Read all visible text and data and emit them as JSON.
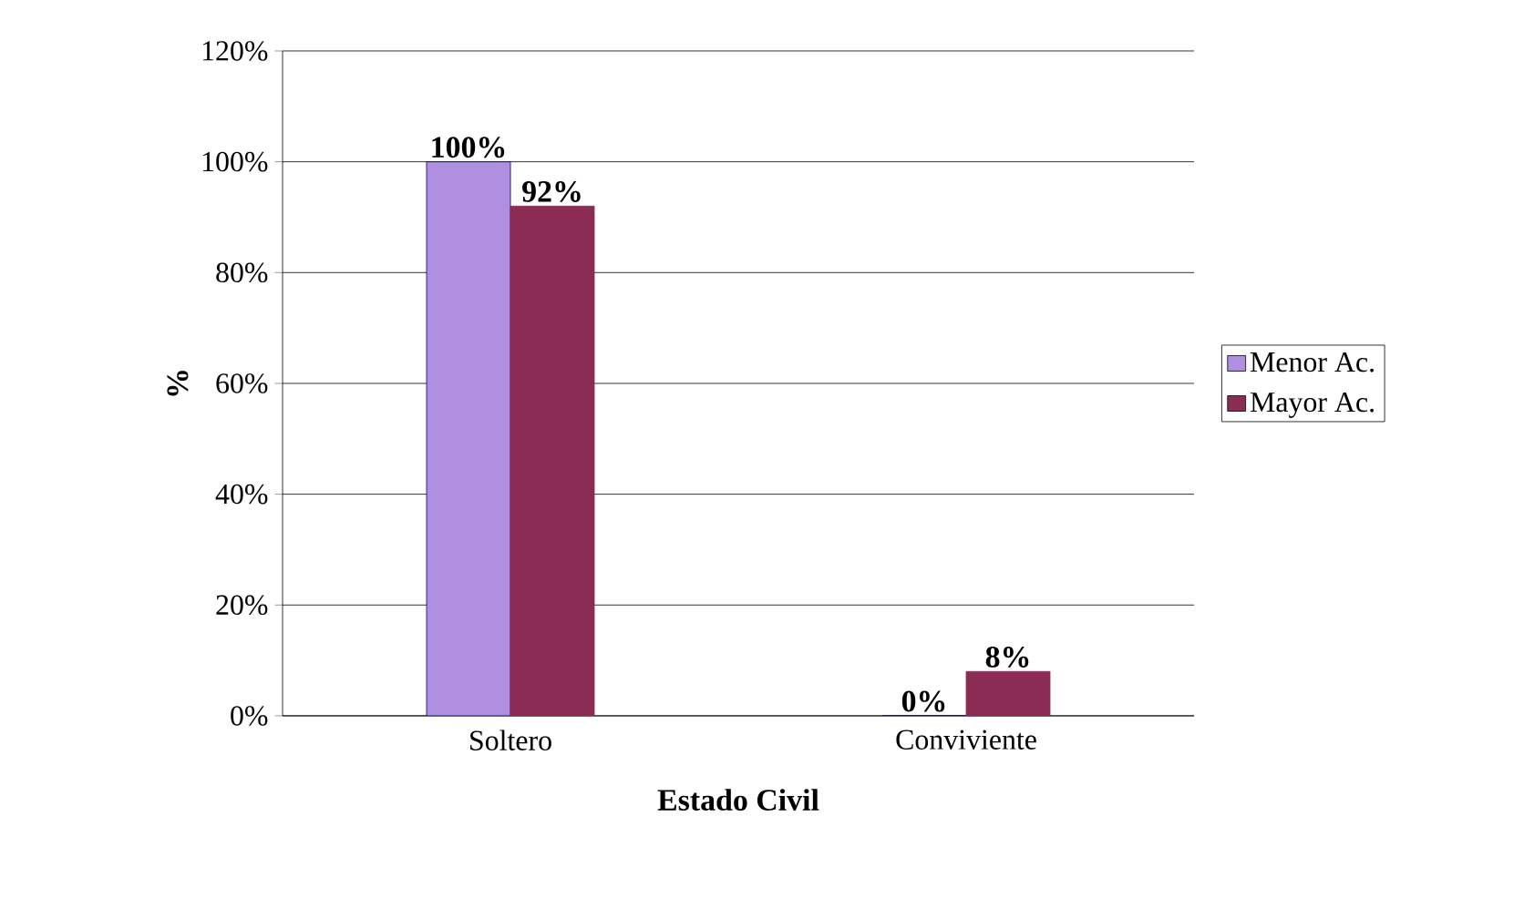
{
  "chart_data": {
    "type": "bar",
    "xlabel": "Estado Civil",
    "ylabel": "%",
    "categories": [
      "Soltero",
      "Conviviente"
    ],
    "series": [
      {
        "name": "Menor Ac.",
        "color": "#b08ee0",
        "values": [
          100,
          0
        ],
        "value_labels": [
          "100%",
          "0%"
        ]
      },
      {
        "name": "Mayor Ac.",
        "color": "#8b2c55",
        "values": [
          92,
          8
        ],
        "value_labels": [
          "92%",
          "8%"
        ]
      }
    ],
    "ylim": [
      0,
      120
    ],
    "yticks": [
      {
        "value": 0,
        "label": "0%"
      },
      {
        "value": 20,
        "label": "20%"
      },
      {
        "value": 40,
        "label": "40%"
      },
      {
        "value": 60,
        "label": "60%"
      },
      {
        "value": 80,
        "label": "80%"
      },
      {
        "value": 100,
        "label": "100%"
      },
      {
        "value": 120,
        "label": "120%"
      }
    ],
    "grid": "y",
    "legend": "right"
  }
}
